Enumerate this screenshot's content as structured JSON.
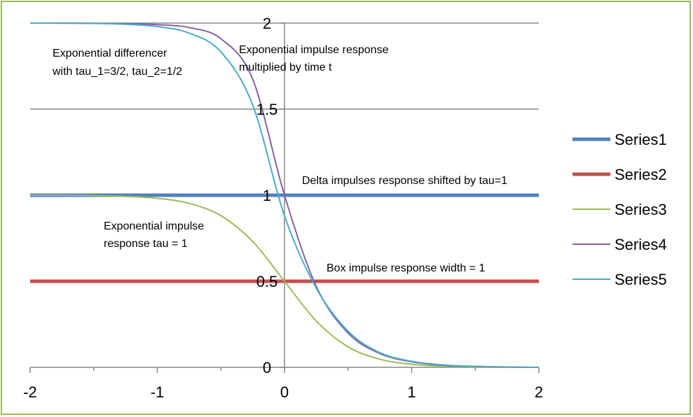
{
  "chart_data": {
    "type": "line",
    "title": "",
    "xlabel": "",
    "ylabel": "",
    "xlim": [
      -2,
      2
    ],
    "ylim": [
      0,
      2
    ],
    "x_ticks": [
      "-2",
      "-1",
      "0",
      "1",
      "2"
    ],
    "y_ticks": [
      "0",
      "0.5",
      "1",
      "1.5",
      "2"
    ],
    "grid": "horizontal major gridlines",
    "legend_position": "right",
    "series": [
      {
        "name": "Series1",
        "color": "#4f81bd",
        "x": [
          -2,
          2
        ],
        "y": [
          1,
          1
        ]
      },
      {
        "name": "Series2",
        "color": "#c0504d",
        "x": [
          -2,
          2
        ],
        "y": [
          0.5,
          0.5
        ]
      },
      {
        "name": "Series3",
        "color": "#9bbb59",
        "x": [
          -2,
          -1.75,
          -1.5,
          -1.25,
          -1,
          -0.75,
          -0.5,
          -0.25,
          0,
          0.25,
          0.5,
          0.75,
          1,
          1.25,
          1.5,
          1.75,
          2
        ],
        "y": [
          1.0,
          1.0,
          0.998,
          0.993,
          0.982,
          0.953,
          0.881,
          0.731,
          0.5,
          0.269,
          0.119,
          0.047,
          0.018,
          0.007,
          0.002,
          0.0,
          0.0
        ]
      },
      {
        "name": "Series4",
        "color": "#8064a2",
        "x": [
          -2,
          -1.75,
          -1.5,
          -1.25,
          -1,
          -0.75,
          -0.5,
          -0.25,
          0,
          0.25,
          0.5,
          0.75,
          1,
          1.25,
          1.5,
          1.75,
          2
        ],
        "y": [
          2.0,
          2.0,
          1.999,
          1.997,
          1.991,
          1.974,
          1.909,
          1.674,
          1.0,
          0.47,
          0.199,
          0.08,
          0.032,
          0.012,
          0.005,
          0.002,
          0.0
        ]
      },
      {
        "name": "Series5",
        "color": "#4bacc6",
        "x": [
          -2,
          -1.75,
          -1.5,
          -1.25,
          -1,
          -0.75,
          -0.5,
          -0.25,
          0,
          0.25,
          0.5,
          0.75,
          1,
          1.25,
          1.5,
          1.75,
          2
        ],
        "y": [
          2.0,
          1.999,
          1.998,
          1.993,
          1.98,
          1.942,
          1.833,
          1.524,
          0.88,
          0.46,
          0.21,
          0.085,
          0.035,
          0.014,
          0.006,
          0.002,
          0.0
        ]
      }
    ],
    "annotations": [
      {
        "id": "expdiff1",
        "text": "Exponential differencer"
      },
      {
        "id": "expdiff2",
        "text": "with tau_1=3/2, tau_2=1/2"
      },
      {
        "id": "impt1",
        "text": "Exponential impulse response"
      },
      {
        "id": "impt2",
        "text": "multiplied by time t"
      },
      {
        "id": "delta",
        "text": "Delta impulses response shifted by tau=1"
      },
      {
        "id": "exptau1",
        "text": "Exponential impulse"
      },
      {
        "id": "exptau2",
        "text": "response tau = 1"
      },
      {
        "id": "box",
        "text": "Box impulse response width = 1"
      }
    ]
  }
}
